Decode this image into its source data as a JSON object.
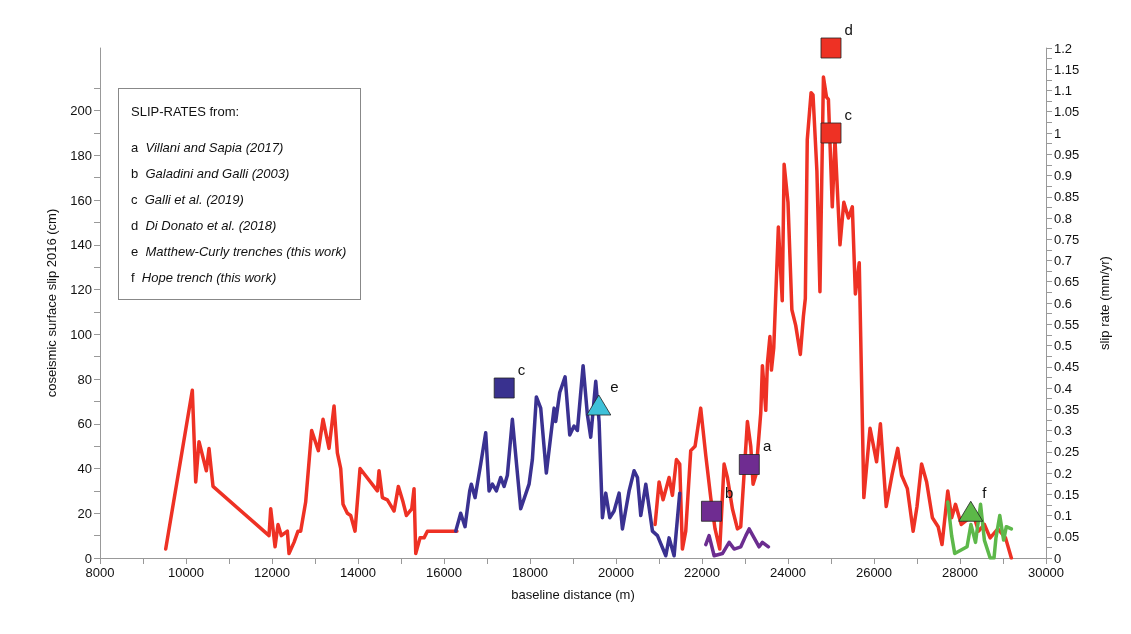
{
  "chart_data": {
    "type": "line",
    "xlabel": "baseline distance (m)",
    "ylabel": "coseismic surface slip 2016 (cm)",
    "y2label": "slip rate (mm/yr)",
    "xlim": [
      8000,
      30000
    ],
    "ylim": [
      0,
      228
    ],
    "y2lim": [
      0,
      1.2
    ],
    "xticks": [
      8000,
      {
        "value": 9000,
        "label": null
      },
      10000,
      {
        "value": 11000,
        "label": null
      },
      12000,
      {
        "value": 13000,
        "label": null
      },
      14000,
      {
        "value": 15000,
        "label": null
      },
      16000,
      {
        "value": 17000,
        "label": null
      },
      18000,
      {
        "value": 19000,
        "label": null
      },
      20000,
      {
        "value": 21000,
        "label": null
      },
      22000,
      {
        "value": 23000,
        "label": null
      },
      24000,
      {
        "value": 25000,
        "label": null
      },
      26000,
      {
        "value": 27000,
        "label": null
      },
      28000,
      {
        "value": 29000,
        "label": null
      },
      30000
    ],
    "yticks": [
      0,
      {
        "value": 10,
        "label": null
      },
      20,
      {
        "value": 30,
        "label": null
      },
      40,
      {
        "value": 50,
        "label": null
      },
      60,
      {
        "value": 70,
        "label": null
      },
      80,
      {
        "value": 90,
        "label": null
      },
      100,
      {
        "value": 110,
        "label": null
      },
      120,
      {
        "value": 130,
        "label": null
      },
      140,
      {
        "value": 150,
        "label": null
      },
      160,
      {
        "value": 170,
        "label": null
      },
      180,
      {
        "value": 190,
        "label": null
      },
      200,
      {
        "value": 210,
        "label": null
      }
    ],
    "y2ticks": [
      0,
      {
        "value": 0.025,
        "label": null
      },
      0.05,
      {
        "value": 0.075,
        "label": null
      },
      0.1,
      {
        "value": 0.125,
        "label": null
      },
      0.15,
      {
        "value": 0.175,
        "label": null
      },
      0.2,
      {
        "value": 0.225,
        "label": null
      },
      0.25,
      {
        "value": 0.275,
        "label": null
      },
      0.3,
      {
        "value": 0.325,
        "label": null
      },
      0.35,
      {
        "value": 0.375,
        "label": null
      },
      0.4,
      {
        "value": 0.425,
        "label": null
      },
      0.45,
      {
        "value": 0.475,
        "label": null
      },
      0.5,
      {
        "value": 0.525,
        "label": null
      },
      0.55,
      {
        "value": 0.575,
        "label": null
      },
      0.6,
      {
        "value": 0.625,
        "label": null
      },
      0.65,
      {
        "value": 0.675,
        "label": null
      },
      0.7,
      {
        "value": 0.725,
        "label": null
      },
      0.75,
      {
        "value": 0.775,
        "label": null
      },
      0.8,
      {
        "value": 0.825,
        "label": null
      },
      0.85,
      {
        "value": 0.875,
        "label": null
      },
      0.9,
      {
        "value": 0.925,
        "label": null
      },
      0.95,
      {
        "value": 0.975,
        "label": null
      },
      1,
      {
        "value": 1.025,
        "label": null
      },
      1.05,
      {
        "value": 1.075,
        "label": null
      },
      1.1,
      {
        "value": 1.125,
        "label": null
      },
      1.15,
      {
        "value": 1.175,
        "label": null
      },
      1.2
    ],
    "grid": false,
    "marker": "none",
    "line_style": "solid",
    "annotations": [
      "SLIP-RATES from:",
      "a Villani and Sapia (2017)",
      "b Galadini and Galli (2003)",
      "c Galli et al. (2019)",
      "d Di Donato et al. (2018)",
      "e Matthew-Curly trenches (this work)",
      "f Hope trench (this work)"
    ],
    "series": [
      {
        "color": "#ee3124",
        "x": [
          9528,
          10147,
          10226,
          10303,
          10473,
          10535,
          10628,
          11931,
          11970,
          12071,
          12140,
          12217,
          12357,
          12396,
          12512,
          12605,
          12667,
          12783,
          12922,
          13078,
          13187,
          13326,
          13443,
          13520,
          13598,
          13652,
          13752,
          13830,
          13931,
          14047,
          14450,
          14489,
          14567,
          14683,
          14839,
          14939,
          15048,
          15126,
          15250,
          15303,
          15343,
          15443,
          15536,
          15614,
          16300,
          18500,
          20909,
          21002,
          21095,
          21235,
          21312,
          21405,
          21482,
          21544,
          21622,
          21738,
          21839,
          21970,
          22087,
          22203,
          22304,
          22413,
          22514,
          22591,
          22707,
          22824,
          22901,
          23056,
          23134,
          23188,
          23251,
          23367,
          23405,
          23483,
          23521,
          23579,
          23615,
          23669,
          23776,
          23866,
          23910,
          24000,
          24090,
          24179,
          24287,
          24358,
          24403,
          24448,
          24537,
          24582,
          24672,
          24743,
          24824,
          24896,
          24940,
          25030,
          25093,
          25209,
          25298,
          25406,
          25496,
          25567,
          25657,
          25764,
          25908,
          26060,
          26149,
          26284,
          26418,
          26552,
          26642,
          26776,
          26910,
          27000,
          27107,
          27224,
          27358,
          27492,
          27582,
          27716,
          27806,
          27895,
          28030,
          28164,
          28298,
          28433,
          28567,
          28701,
          28880,
          29059,
          29194
        ],
        "values": [
          4,
          75,
          34,
          52,
          39,
          49,
          32,
          10,
          22,
          5,
          15,
          10,
          12,
          2,
          7,
          12,
          12,
          25,
          57,
          48,
          62,
          49,
          68,
          47,
          40,
          24,
          20,
          19,
          12,
          40,
          30,
          39,
          27,
          26,
          21,
          32,
          25,
          19,
          22,
          31,
          2,
          9,
          9,
          12,
          12,
          null,
          15,
          34,
          26,
          36,
          28,
          44,
          42,
          4,
          12,
          48,
          50,
          67,
          46,
          27,
          13,
          4,
          42,
          36,
          22,
          13,
          14,
          61,
          50,
          33,
          37,
          65,
          86,
          66,
          87,
          99,
          84,
          94,
          148,
          115,
          176,
          159,
          111,
          104,
          91,
          108,
          116,
          187,
          208,
          207,
          173,
          119,
          215,
          206,
          205,
          157,
          187,
          140,
          159,
          152,
          157,
          118,
          132,
          27,
          58,
          43,
          60,
          23,
          37,
          49,
          37,
          31,
          12,
          23,
          42,
          34,
          18,
          14,
          6,
          30,
          18,
          24,
          15,
          17,
          20,
          12,
          15,
          9,
          13,
          9,
          0
        ]
      },
      {
        "color": "#3a3191",
        "x": [
          16273,
          16388,
          16489,
          16598,
          16636,
          16722,
          16854,
          16970,
          17048,
          17125,
          17218,
          17318,
          17397,
          17474,
          17590,
          17784,
          17978,
          18055,
          18148,
          18249,
          18380,
          18560,
          18598,
          18691,
          18816,
          18924,
          19024,
          19102,
          19235,
          19335,
          19412,
          19529,
          19607,
          19684,
          19761,
          19855,
          19955,
          20072,
          20149,
          20305,
          20421,
          20499,
          20576,
          20693,
          20848,
          20964,
          21158,
          21235,
          21351,
          21482
        ],
        "values": [
          12,
          20,
          14,
          30,
          33,
          27,
          42,
          56,
          30,
          33,
          30,
          36,
          32,
          37,
          62,
          22,
          33,
          44,
          72,
          67,
          38,
          67,
          61,
          74,
          81,
          55,
          59,
          57,
          86,
          64,
          54,
          79,
          61,
          18,
          29,
          18,
          21,
          29,
          13,
          30,
          39,
          36,
          19,
          33,
          12,
          10,
          1,
          9,
          1,
          29
        ]
      },
      {
        "color": "#6b2d90",
        "x": [
          22088,
          22165,
          22282,
          22475,
          22631,
          22747,
          22902,
          23019,
          23096,
          23212,
          23328,
          23405,
          23545
        ],
        "values": [
          6,
          10,
          1,
          2,
          7,
          4,
          5,
          10,
          13,
          9,
          5,
          7,
          5
        ]
      },
      {
        "color": "#5db84a",
        "x": [
          27716,
          27806,
          27877,
          28164,
          28254,
          28361,
          28478,
          28567,
          28701,
          28791,
          28836,
          28925,
          29015,
          29077,
          29194
        ],
        "values": [
          25,
          10,
          2,
          5,
          15,
          7,
          24,
          8,
          0,
          0,
          9,
          19,
          8,
          14,
          13
        ]
      },
      {
        "type": "scatter",
        "axis": "y2",
        "marker": "square",
        "color": "#39318f",
        "x": [
          17400
        ],
        "values": [
          0.4
        ],
        "value_labels": [
          "c"
        ]
      },
      {
        "type": "scatter",
        "axis": "y2",
        "marker": "triangle",
        "color": "#3fc1d9",
        "x": [
          19600
        ],
        "values": [
          0.36
        ],
        "value_labels": [
          "e"
        ]
      },
      {
        "type": "scatter",
        "axis": "y2",
        "marker": "square",
        "color": "#6f2c91",
        "x": [
          22220
        ],
        "values": [
          0.11
        ],
        "value_labels": [
          "b"
        ]
      },
      {
        "type": "scatter",
        "axis": "y2",
        "marker": "square",
        "color": "#6f2c91",
        "x": [
          23100
        ],
        "values": [
          0.22
        ],
        "value_labels": [
          "a"
        ]
      },
      {
        "type": "scatter",
        "axis": "y2",
        "marker": "square",
        "color": "#ee3124",
        "x": [
          25000
        ],
        "values": [
          1.2
        ],
        "value_labels": [
          "d"
        ]
      },
      {
        "type": "scatter",
        "axis": "y2",
        "marker": "square",
        "color": "#ee3124",
        "x": [
          25000
        ],
        "values": [
          1.0
        ],
        "value_labels": [
          "c"
        ]
      },
      {
        "type": "scatter",
        "axis": "y2",
        "marker": "triangle",
        "color": "#5cb848",
        "x": [
          28250
        ],
        "values": [
          0.11
        ],
        "value_labels": [
          "f"
        ]
      }
    ]
  }
}
